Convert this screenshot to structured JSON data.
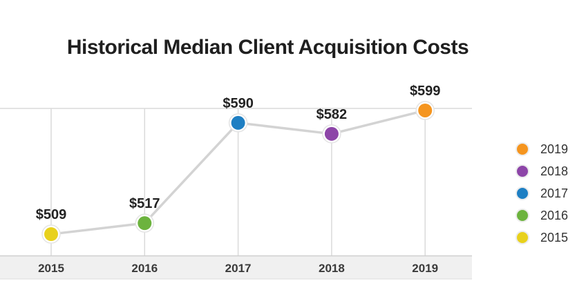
{
  "chart_data": {
    "type": "line",
    "title": "Historical Median Client Acquisition Costs",
    "xlabel": "",
    "ylabel": "",
    "categories": [
      "2015",
      "2016",
      "2017",
      "2018",
      "2019"
    ],
    "values": [
      509,
      517,
      590,
      582,
      599
    ],
    "data_labels": [
      "$509",
      "$517",
      "$590",
      "$582",
      "$599"
    ],
    "point_colors": [
      "#e8d11c",
      "#6cb33e",
      "#1e7fc3",
      "#8d45a8",
      "#f5951f"
    ],
    "line_color": "#d3d3d3",
    "ylim": [
      503,
      600
    ],
    "grid": true,
    "legend_position": "right",
    "legend": [
      {
        "label": "2019",
        "color": "#f5951f"
      },
      {
        "label": "2018",
        "color": "#8d45a8"
      },
      {
        "label": "2017",
        "color": "#1e7fc3"
      },
      {
        "label": "2016",
        "color": "#6cb33e"
      },
      {
        "label": "2015",
        "color": "#e8d11c"
      }
    ]
  }
}
